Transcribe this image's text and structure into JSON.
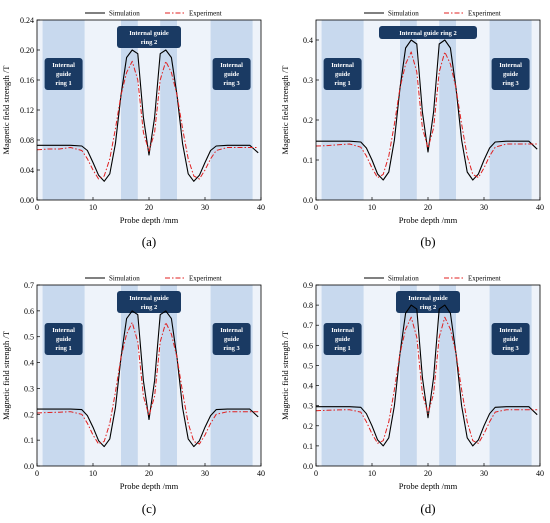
{
  "chart_data": [
    {
      "panel": "(a)",
      "type": "line",
      "xlabel": "Probe depth /mm",
      "ylabel": "Magnetic field strength /T",
      "xlim": [
        0,
        40
      ],
      "ylim": [
        0,
        0.24
      ],
      "xticks": [
        0,
        10,
        20,
        30,
        40
      ],
      "yticks": [
        0.0,
        0.04,
        0.08,
        0.12,
        0.16,
        0.2,
        0.24
      ],
      "legend": "top-center",
      "regions": [
        {
          "label": [
            "Internal",
            "guide",
            "ring 1"
          ],
          "x0": 1,
          "x1": 8.5
        },
        {
          "label": [
            "Internal guide",
            "ring 2"
          ],
          "x0": 15,
          "x1": 25
        },
        {
          "label": [
            "Internal",
            "guide",
            "ring 3"
          ],
          "x0": 31,
          "x1": 38.5
        }
      ],
      "series": [
        {
          "name": "Simulation",
          "color": "#000000",
          "dash": "solid",
          "x": [
            0,
            2,
            4,
            6,
            8,
            9,
            10,
            11,
            12,
            13,
            14,
            15,
            16,
            17,
            18,
            19,
            20,
            21,
            22,
            23,
            24,
            25,
            26,
            27,
            28,
            29,
            30,
            31,
            32,
            34,
            36,
            38,
            39.5
          ],
          "y": [
            0.073,
            0.073,
            0.073,
            0.073,
            0.072,
            0.066,
            0.05,
            0.033,
            0.025,
            0.035,
            0.075,
            0.14,
            0.19,
            0.2,
            0.195,
            0.11,
            0.06,
            0.11,
            0.195,
            0.2,
            0.19,
            0.14,
            0.075,
            0.035,
            0.025,
            0.033,
            0.05,
            0.066,
            0.072,
            0.073,
            0.073,
            0.073,
            0.063
          ]
        },
        {
          "name": "Experiment",
          "color": "#e02020",
          "dash": "dashdot",
          "x": [
            0,
            2,
            4,
            6,
            8,
            9,
            10,
            11,
            12,
            13,
            14,
            15,
            16,
            17,
            18,
            19,
            20,
            21,
            22,
            23,
            24,
            25,
            26,
            27,
            28,
            29,
            30,
            31,
            32,
            34,
            36,
            38,
            39.5
          ],
          "y": [
            0.067,
            0.068,
            0.068,
            0.07,
            0.066,
            0.055,
            0.04,
            0.028,
            0.032,
            0.055,
            0.095,
            0.14,
            0.17,
            0.185,
            0.16,
            0.09,
            0.065,
            0.09,
            0.16,
            0.185,
            0.17,
            0.14,
            0.095,
            0.055,
            0.032,
            0.028,
            0.04,
            0.055,
            0.066,
            0.07,
            0.07,
            0.07,
            0.07
          ]
        }
      ]
    },
    {
      "panel": "(b)",
      "type": "line",
      "xlabel": "Probe depth /mm",
      "ylabel": "Magnetic field strength /T",
      "xlim": [
        0,
        40
      ],
      "ylim": [
        0,
        0.45
      ],
      "xticks": [
        0,
        10,
        20,
        30,
        40
      ],
      "yticks": [
        0.0,
        0.1,
        0.2,
        0.3,
        0.4
      ],
      "legend": "top-center",
      "regions": [
        {
          "label": [
            "Internal",
            "guide",
            "ring 1"
          ],
          "x0": 1,
          "x1": 8.5
        },
        {
          "label": [
            "Internal guide ring 2"
          ],
          "x0": 15,
          "x1": 25
        },
        {
          "label": [
            "Internal",
            "guide",
            "ring 3"
          ],
          "x0": 31,
          "x1": 38.5
        }
      ],
      "series": [
        {
          "name": "Simulation",
          "color": "#000000",
          "dash": "solid",
          "x": [
            0,
            2,
            4,
            6,
            8,
            9,
            10,
            11,
            12,
            13,
            14,
            15,
            16,
            17,
            18,
            19,
            20,
            21,
            22,
            23,
            24,
            25,
            26,
            27,
            28,
            29,
            30,
            31,
            32,
            34,
            36,
            38,
            39.5
          ],
          "y": [
            0.147,
            0.147,
            0.147,
            0.147,
            0.145,
            0.13,
            0.1,
            0.065,
            0.05,
            0.07,
            0.15,
            0.28,
            0.38,
            0.4,
            0.39,
            0.22,
            0.12,
            0.22,
            0.39,
            0.4,
            0.38,
            0.28,
            0.15,
            0.07,
            0.05,
            0.065,
            0.1,
            0.13,
            0.145,
            0.147,
            0.147,
            0.147,
            0.127
          ]
        },
        {
          "name": "Experiment",
          "color": "#e02020",
          "dash": "dashdot",
          "x": [
            0,
            2,
            4,
            6,
            8,
            9,
            10,
            11,
            12,
            13,
            14,
            15,
            16,
            17,
            18,
            19,
            20,
            21,
            22,
            23,
            24,
            25,
            26,
            27,
            28,
            29,
            30,
            31,
            32,
            34,
            36,
            38,
            39.5
          ],
          "y": [
            0.135,
            0.136,
            0.138,
            0.14,
            0.132,
            0.11,
            0.08,
            0.056,
            0.064,
            0.11,
            0.19,
            0.28,
            0.34,
            0.37,
            0.32,
            0.18,
            0.13,
            0.18,
            0.32,
            0.37,
            0.34,
            0.28,
            0.19,
            0.11,
            0.064,
            0.056,
            0.08,
            0.11,
            0.132,
            0.14,
            0.14,
            0.14,
            0.14
          ]
        }
      ]
    },
    {
      "panel": "(c)",
      "type": "line",
      "xlabel": "Probe depth /mm",
      "ylabel": "Magnetic field strength /T",
      "xlim": [
        0,
        40
      ],
      "ylim": [
        0,
        0.7
      ],
      "xticks": [
        0,
        10,
        20,
        30,
        40
      ],
      "yticks": [
        0.0,
        0.1,
        0.2,
        0.3,
        0.4,
        0.5,
        0.6,
        0.7
      ],
      "legend": "top-center",
      "regions": [
        {
          "label": [
            "Internal",
            "guide",
            "ring 1"
          ],
          "x0": 1,
          "x1": 8.5
        },
        {
          "label": [
            "Internal guide",
            "ring 2"
          ],
          "x0": 15,
          "x1": 25
        },
        {
          "label": [
            "Internal",
            "guide",
            "ring 3"
          ],
          "x0": 31,
          "x1": 38.5
        }
      ],
      "series": [
        {
          "name": "Simulation",
          "color": "#000000",
          "dash": "solid",
          "x": [
            0,
            2,
            4,
            6,
            8,
            9,
            10,
            11,
            12,
            13,
            14,
            15,
            16,
            17,
            18,
            19,
            20,
            21,
            22,
            23,
            24,
            25,
            26,
            27,
            28,
            29,
            30,
            31,
            32,
            34,
            36,
            38,
            39.5
          ],
          "y": [
            0.22,
            0.22,
            0.22,
            0.22,
            0.218,
            0.195,
            0.15,
            0.098,
            0.075,
            0.105,
            0.225,
            0.42,
            0.57,
            0.6,
            0.585,
            0.33,
            0.18,
            0.33,
            0.585,
            0.6,
            0.57,
            0.42,
            0.225,
            0.105,
            0.075,
            0.098,
            0.15,
            0.195,
            0.218,
            0.22,
            0.22,
            0.22,
            0.19
          ]
        },
        {
          "name": "Experiment",
          "color": "#e02020",
          "dash": "dashdot",
          "x": [
            0,
            2,
            4,
            6,
            8,
            9,
            10,
            11,
            12,
            13,
            14,
            15,
            16,
            17,
            18,
            19,
            20,
            21,
            22,
            23,
            24,
            25,
            26,
            27,
            28,
            29,
            30,
            31,
            32,
            34,
            36,
            38,
            39.5
          ],
          "y": [
            0.205,
            0.207,
            0.208,
            0.21,
            0.2,
            0.165,
            0.12,
            0.085,
            0.095,
            0.165,
            0.285,
            0.42,
            0.51,
            0.555,
            0.48,
            0.27,
            0.195,
            0.27,
            0.48,
            0.555,
            0.51,
            0.42,
            0.285,
            0.165,
            0.095,
            0.085,
            0.12,
            0.165,
            0.2,
            0.21,
            0.21,
            0.21,
            0.21
          ]
        }
      ]
    },
    {
      "panel": "(d)",
      "type": "line",
      "xlabel": "Probe depth /mm",
      "ylabel": "Magnetic field strength /T",
      "xlim": [
        0,
        40
      ],
      "ylim": [
        0,
        0.9
      ],
      "xticks": [
        0,
        10,
        20,
        30,
        40
      ],
      "yticks": [
        0.0,
        0.1,
        0.2,
        0.3,
        0.4,
        0.5,
        0.6,
        0.7,
        0.8,
        0.9
      ],
      "legend": "top-center",
      "regions": [
        {
          "label": [
            "Internal",
            "guide",
            "ring 1"
          ],
          "x0": 1,
          "x1": 8.5
        },
        {
          "label": [
            "Internal guide",
            "ring 2"
          ],
          "x0": 15,
          "x1": 25
        },
        {
          "label": [
            "Internal",
            "guide",
            "ring 3"
          ],
          "x0": 31,
          "x1": 38.5
        }
      ],
      "series": [
        {
          "name": "Simulation",
          "color": "#000000",
          "dash": "solid",
          "x": [
            0,
            2,
            4,
            6,
            8,
            9,
            10,
            11,
            12,
            13,
            14,
            15,
            16,
            17,
            18,
            19,
            20,
            21,
            22,
            23,
            24,
            25,
            26,
            27,
            28,
            29,
            30,
            31,
            32,
            34,
            36,
            38,
            39.5
          ],
          "y": [
            0.295,
            0.295,
            0.295,
            0.295,
            0.292,
            0.26,
            0.2,
            0.13,
            0.1,
            0.14,
            0.3,
            0.56,
            0.76,
            0.8,
            0.78,
            0.44,
            0.24,
            0.44,
            0.78,
            0.8,
            0.76,
            0.56,
            0.3,
            0.14,
            0.1,
            0.13,
            0.2,
            0.26,
            0.292,
            0.295,
            0.295,
            0.295,
            0.255
          ]
        },
        {
          "name": "Experiment",
          "color": "#e02020",
          "dash": "dashdot",
          "x": [
            0,
            2,
            4,
            6,
            8,
            9,
            10,
            11,
            12,
            13,
            14,
            15,
            16,
            17,
            18,
            19,
            20,
            21,
            22,
            23,
            24,
            25,
            26,
            27,
            28,
            29,
            30,
            31,
            32,
            34,
            36,
            38,
            39.5
          ],
          "y": [
            0.275,
            0.277,
            0.279,
            0.28,
            0.268,
            0.22,
            0.16,
            0.113,
            0.126,
            0.22,
            0.38,
            0.56,
            0.68,
            0.74,
            0.64,
            0.36,
            0.26,
            0.36,
            0.64,
            0.74,
            0.68,
            0.56,
            0.38,
            0.22,
            0.126,
            0.113,
            0.16,
            0.22,
            0.268,
            0.28,
            0.28,
            0.28,
            0.28
          ]
        }
      ]
    }
  ]
}
